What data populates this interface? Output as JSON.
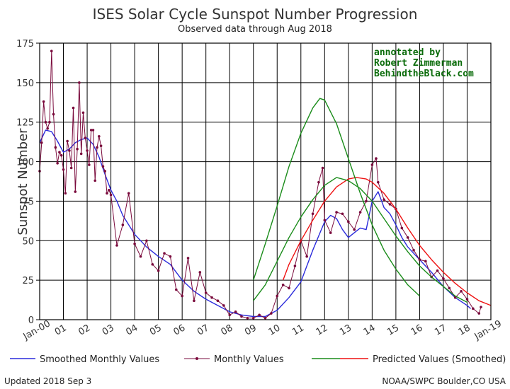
{
  "chart_data": {
    "type": "line",
    "title": "ISES Solar Cycle Sunspot Number Progression",
    "subtitle": "Observed data through Aug 2018",
    "ylabel": "Sunspot Number",
    "xlabel": "",
    "xlim": [
      2000,
      2019
    ],
    "ylim": [
      0,
      175
    ],
    "grid": true,
    "x_ticks": [
      2000,
      2001,
      2002,
      2003,
      2004,
      2005,
      2006,
      2007,
      2008,
      2009,
      2010,
      2011,
      2012,
      2013,
      2014,
      2015,
      2016,
      2017,
      2018,
      2019
    ],
    "x_tick_labels": [
      "Jan-00",
      "01",
      "02",
      "03",
      "04",
      "05",
      "06",
      "07",
      "08",
      "09",
      "10",
      "11",
      "12",
      "13",
      "14",
      "15",
      "16",
      "17",
      "18",
      "Jan-19"
    ],
    "y_ticks": [
      0,
      25,
      50,
      75,
      100,
      125,
      150,
      175
    ],
    "y_tick_labels": [
      "0",
      "25",
      "50",
      "75",
      "100",
      "125",
      "150",
      "175"
    ],
    "annotation": [
      "annotated by",
      "Robert Zimmerman",
      "BehindtheBlack.com"
    ],
    "colors": {
      "smoothed": "#2b2bdb",
      "monthly": "#7a0a3c",
      "predicted": "#ee1111",
      "predicted_alt": "#1a8c1a",
      "annotation": "#0a6b0a",
      "grid": "#000000"
    },
    "legend": {
      "position": "bottom",
      "items": [
        "Smoothed Monthly Values",
        "Monthly Values",
        "Predicted Values (Smoothed)"
      ]
    },
    "series": [
      {
        "name": "Smoothed Monthly Values",
        "style": "line",
        "x": [
          2000.0,
          2000.25,
          2000.5,
          2000.75,
          2001.0,
          2001.25,
          2001.5,
          2001.75,
          2002.0,
          2002.25,
          2002.5,
          2002.75,
          2003.0,
          2003.25,
          2003.5,
          2003.75,
          2004.0,
          2004.5,
          2005.0,
          2005.5,
          2006.0,
          2006.5,
          2007.0,
          2007.5,
          2008.0,
          2008.5,
          2009.0,
          2009.5,
          2010.0,
          2010.5,
          2011.0,
          2011.25,
          2011.5,
          2011.75,
          2012.0,
          2012.25,
          2012.5,
          2012.75,
          2013.0,
          2013.25,
          2013.5,
          2013.75,
          2014.0,
          2014.25,
          2014.5,
          2014.75,
          2015.0,
          2015.25,
          2015.5,
          2016.0,
          2016.5,
          2017.0,
          2017.5,
          2018.0,
          2018.15
        ],
        "y": [
          112,
          120,
          119,
          113,
          106,
          108,
          112,
          114,
          115,
          111,
          103,
          92,
          82,
          75,
          66,
          60,
          54,
          46,
          40,
          35,
          25,
          18,
          13,
          9,
          5,
          3,
          2,
          2,
          6,
          14,
          24,
          34,
          44,
          53,
          62,
          66,
          64,
          57,
          52,
          55,
          58,
          57,
          75,
          81,
          71,
          67,
          60,
          52,
          46,
          38,
          30,
          21,
          14,
          9,
          7
        ]
      },
      {
        "name": "Monthly Values",
        "style": "line-markers",
        "x": [
          2000.0,
          2000.083,
          2000.167,
          2000.25,
          2000.333,
          2000.417,
          2000.5,
          2000.583,
          2000.667,
          2000.75,
          2000.833,
          2000.917,
          2001.0,
          2001.083,
          2001.167,
          2001.25,
          2001.333,
          2001.417,
          2001.5,
          2001.583,
          2001.667,
          2001.75,
          2001.833,
          2001.917,
          2002.0,
          2002.083,
          2002.167,
          2002.25,
          2002.333,
          2002.417,
          2002.5,
          2002.583,
          2002.667,
          2002.75,
          2002.833,
          2002.917,
          2003.0,
          2003.25,
          2003.5,
          2003.75,
          2004.0,
          2004.25,
          2004.5,
          2004.75,
          2005.0,
          2005.25,
          2005.5,
          2005.75,
          2006.0,
          2006.25,
          2006.5,
          2006.75,
          2007.0,
          2007.25,
          2007.5,
          2007.75,
          2008.0,
          2008.25,
          2008.5,
          2008.75,
          2009.0,
          2009.25,
          2009.5,
          2009.75,
          2010.0,
          2010.25,
          2010.5,
          2010.75,
          2011.0,
          2011.25,
          2011.5,
          2011.75,
          2011.917,
          2012.0,
          2012.25,
          2012.5,
          2012.75,
          2013.0,
          2013.25,
          2013.5,
          2013.75,
          2014.0,
          2014.167,
          2014.25,
          2014.5,
          2014.75,
          2015.0,
          2015.25,
          2015.5,
          2015.75,
          2016.0,
          2016.25,
          2016.5,
          2016.75,
          2017.0,
          2017.25,
          2017.5,
          2017.75,
          2018.0,
          2018.25,
          2018.5,
          2018.583
        ],
        "y": [
          94,
          112,
          138,
          125,
          121,
          125,
          170,
          130,
          109,
          99,
          106,
          104,
          95,
          80,
          113,
          107,
          96,
          134,
          81,
          108,
          150,
          105,
          131,
          115,
          107,
          98,
          120,
          120,
          88,
          109,
          116,
          110,
          97,
          94,
          80,
          82,
          79,
          47,
          60,
          80,
          48,
          40,
          50,
          35,
          31,
          42,
          40,
          19,
          15,
          39,
          12,
          30,
          17,
          14,
          12,
          9,
          3,
          5,
          2,
          1,
          1,
          3,
          1,
          4,
          15,
          22,
          20,
          34,
          50,
          40,
          67,
          87,
          96,
          63,
          55,
          68,
          67,
          62,
          57,
          68,
          75,
          98,
          102,
          87,
          76,
          73,
          70,
          58,
          52,
          44,
          38,
          37,
          27,
          31,
          26,
          20,
          14,
          18,
          13,
          7,
          4,
          8
        ]
      },
      {
        "name": "Predicted Values (Smoothed)",
        "style": "line",
        "color_key": "predicted",
        "x": [
          2010.25,
          2010.5,
          2011.0,
          2011.5,
          2012.0,
          2012.5,
          2013.0,
          2013.33,
          2013.75,
          2014.0,
          2014.5,
          2015.0,
          2015.5,
          2016.0,
          2016.5,
          2017.0,
          2017.5,
          2018.0,
          2018.5,
          2019.0
        ],
        "y": [
          25,
          35,
          50,
          63,
          75,
          84,
          89,
          90,
          89,
          87,
          80,
          70,
          58,
          47,
          38,
          30,
          23,
          17,
          12,
          9
        ]
      },
      {
        "style": "line",
        "color_key": "predicted_alt",
        "x": [
          2009.0,
          2009.5,
          2010.0,
          2010.5,
          2011.0,
          2011.5,
          2011.8,
          2012.0,
          2012.5,
          2013.0,
          2013.5,
          2014.0,
          2014.5,
          2015.0,
          2015.5,
          2016.0
        ],
        "y": [
          25,
          48,
          72,
          97,
          118,
          134,
          140,
          139,
          124,
          102,
          80,
          60,
          44,
          32,
          22,
          15
        ]
      },
      {
        "style": "line",
        "color_key": "predicted_alt",
        "x": [
          2009.0,
          2009.5,
          2010.0,
          2010.5,
          2011.0,
          2011.5,
          2012.0,
          2012.5,
          2013.0,
          2013.5,
          2014.0,
          2014.5,
          2015.0,
          2015.5,
          2016.0,
          2016.5,
          2017.0,
          2017.5,
          2018.0
        ],
        "y": [
          12,
          22,
          37,
          52,
          65,
          76,
          85,
          90,
          88,
          83,
          75,
          64,
          53,
          43,
          34,
          27,
          21,
          15,
          11
        ]
      }
    ]
  },
  "footer": {
    "updated": "Updated 2018 Sep  3",
    "source": "NOAA/SWPC Boulder,CO USA"
  }
}
